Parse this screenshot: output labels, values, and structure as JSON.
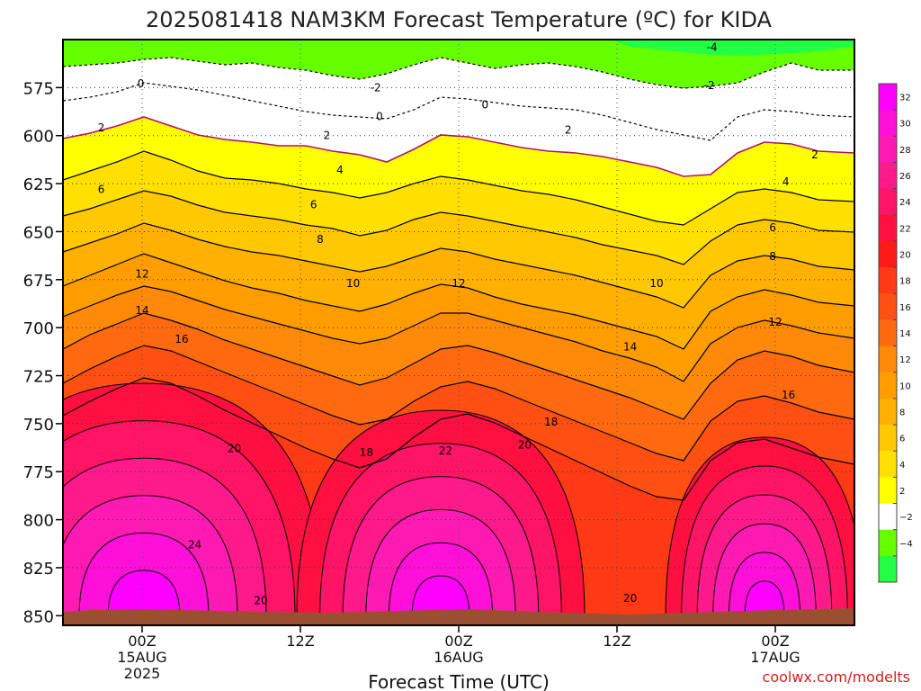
{
  "chart_data": {
    "type": "heatmap",
    "title": "2025081418 NAM3KM Forecast Temperature (ºC) for KIDA",
    "xlabel": "Forecast Time (UTC)",
    "credit": "coolwx.com/modelts",
    "y_axis": {
      "ticks": [
        575,
        600,
        625,
        650,
        675,
        700,
        725,
        750,
        775,
        800,
        825,
        850
      ],
      "range": [
        550,
        855
      ]
    },
    "x_axis": {
      "ticks": [
        {
          "label": "00Z",
          "sub": "15AUG",
          "sub2": "2025",
          "hour": 6
        },
        {
          "label": "12Z",
          "sub": "",
          "sub2": "",
          "hour": 18
        },
        {
          "label": "00Z",
          "sub": "16AUG",
          "sub2": "",
          "hour": 30
        },
        {
          "label": "12Z",
          "sub": "",
          "sub2": "",
          "hour": 42
        },
        {
          "label": "00Z",
          "sub": "17AUG",
          "sub2": "",
          "hour": 54
        }
      ],
      "range": [
        0,
        60
      ]
    },
    "colorbar": {
      "labels": [
        "32",
        "30",
        "28",
        "26",
        "24",
        "22",
        "20",
        "18",
        "16",
        "14",
        "12",
        "10",
        "8",
        "6",
        "4",
        "2",
        "−2",
        "−4"
      ],
      "colors": [
        "#ff00ff",
        "#ff10d8",
        "#ff1ab4",
        "#ff1a8c",
        "#ff1466",
        "#ff1040",
        "#ff1a1a",
        "#ff3a14",
        "#ff5014",
        "#ff6a10",
        "#ff8a0a",
        "#ff9d00",
        "#ffb000",
        "#ffc800",
        "#ffe000",
        "#ffff00",
        "#ffffff",
        "#66ff00",
        "#22ff44"
      ]
    },
    "contour_labels": [
      {
        "text": "-4",
        "hour": 49.2,
        "p": 554
      },
      {
        "text": "-2",
        "hour": 23.7,
        "p": 575
      },
      {
        "text": "-2",
        "hour": 49.0,
        "p": 574
      },
      {
        "text": "0",
        "hour": 5.9,
        "p": 573
      },
      {
        "text": "0",
        "hour": 24.0,
        "p": 590
      },
      {
        "text": "0",
        "hour": 32.0,
        "p": 584
      },
      {
        "text": "2",
        "hour": 2.9,
        "p": 596
      },
      {
        "text": "2",
        "hour": 20.0,
        "p": 600
      },
      {
        "text": "2",
        "hour": 38.3,
        "p": 597
      },
      {
        "text": "2",
        "hour": 57.0,
        "p": 610
      },
      {
        "text": "4",
        "hour": 21.0,
        "p": 618
      },
      {
        "text": "4",
        "hour": 54.8,
        "p": 624
      },
      {
        "text": "6",
        "hour": 2.9,
        "p": 628
      },
      {
        "text": "6",
        "hour": 19.0,
        "p": 636
      },
      {
        "text": "6",
        "hour": 53.8,
        "p": 648
      },
      {
        "text": "8",
        "hour": 19.5,
        "p": 654
      },
      {
        "text": "8",
        "hour": 53.8,
        "p": 663
      },
      {
        "text": "10",
        "hour": 22.0,
        "p": 677
      },
      {
        "text": "10",
        "hour": 45.0,
        "p": 677
      },
      {
        "text": "12",
        "hour": 6.0,
        "p": 672
      },
      {
        "text": "12",
        "hour": 30.0,
        "p": 677
      },
      {
        "text": "12",
        "hour": 54.0,
        "p": 697
      },
      {
        "text": "14",
        "hour": 6.0,
        "p": 691
      },
      {
        "text": "14",
        "hour": 43.0,
        "p": 710
      },
      {
        "text": "16",
        "hour": 9.0,
        "p": 706
      },
      {
        "text": "16",
        "hour": 55.0,
        "p": 735
      },
      {
        "text": "18",
        "hour": 23.0,
        "p": 765
      },
      {
        "text": "18",
        "hour": 37.0,
        "p": 749
      },
      {
        "text": "20",
        "hour": 13.0,
        "p": 763
      },
      {
        "text": "20",
        "hour": 35.0,
        "p": 761
      },
      {
        "text": "20",
        "hour": 15.0,
        "p": 842
      },
      {
        "text": "20",
        "hour": 43.0,
        "p": 841
      },
      {
        "text": "22",
        "hour": 29.0,
        "p": 764
      },
      {
        "text": "24",
        "hour": 10.0,
        "p": 813
      }
    ]
  }
}
